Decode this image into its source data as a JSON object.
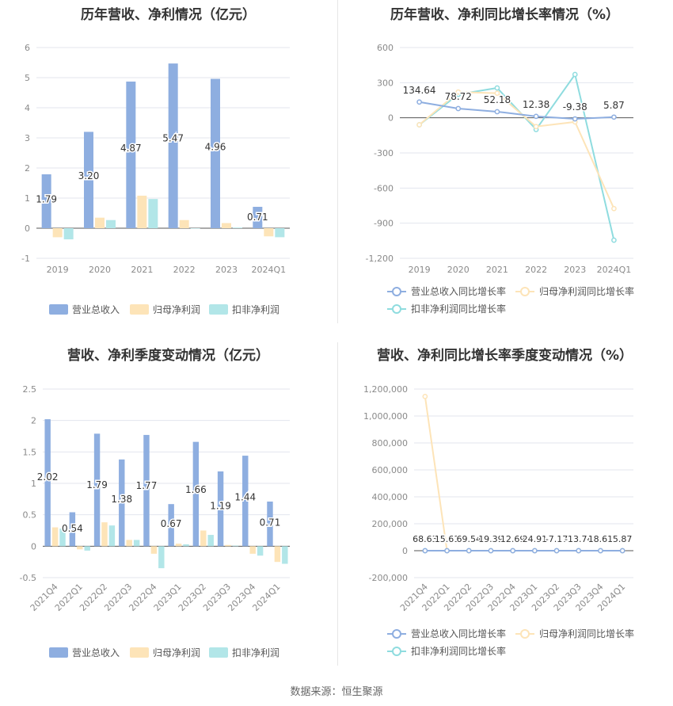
{
  "source": "数据来源：恒生聚源",
  "charts": [
    {
      "title": "历年营收、净利情况（亿元）",
      "type": "bar",
      "categories": [
        "2019",
        "2020",
        "2021",
        "2022",
        "2023",
        "2024Q1"
      ],
      "ylim": [
        -1,
        6
      ],
      "yticks": [
        -1,
        0,
        1,
        2,
        3,
        4,
        5,
        6
      ],
      "legend": [
        "营业总收入",
        "归母净利润",
        "扣非净利润"
      ],
      "colors": [
        "#8eaee0",
        "#fde4b8",
        "#b2e6e8"
      ],
      "series": [
        {
          "name": "营业总收入",
          "values": [
            1.79,
            3.2,
            4.87,
            5.47,
            4.96,
            0.71
          ],
          "labels": [
            "1.79",
            "3.20",
            "4.87",
            "5.47",
            "4.96",
            "0.71"
          ]
        },
        {
          "name": "归母净利润",
          "values": [
            -0.3,
            0.35,
            1.08,
            0.27,
            0.17,
            -0.27
          ]
        },
        {
          "name": "扣非净利润",
          "values": [
            -0.37,
            0.27,
            0.97,
            0.0,
            0.02,
            -0.3
          ]
        }
      ]
    },
    {
      "title": "历年营收、净利同比增长率情况（%）",
      "type": "line",
      "categories": [
        "2019",
        "2020",
        "2021",
        "2022",
        "2023",
        "2024Q1"
      ],
      "ylim": [
        -1200,
        600
      ],
      "yticks": [
        -1200,
        -900,
        -600,
        -300,
        0,
        300,
        600
      ],
      "ytick_labels": [
        "-1,200",
        "-900",
        "-600",
        "-300",
        "0",
        "300",
        "600"
      ],
      "legend": [
        "营业总收入同比增长率",
        "归母净利润同比增长率",
        "扣非净利润同比增长率"
      ],
      "colors": [
        "#8eaee0",
        "#fde4b8",
        "#8fdcdf"
      ],
      "series": [
        {
          "name": "营业总收入同比增长率",
          "values": [
            134.64,
            78.72,
            52.18,
            12.38,
            -9.38,
            5.87
          ],
          "labels": [
            "134.64",
            "78.72",
            "52.18",
            "12.38",
            "-9.38",
            "5.87"
          ]
        },
        {
          "name": "归母净利润同比增长率",
          "values": [
            -60,
            220,
            210,
            -75,
            -35,
            -775
          ]
        },
        {
          "name": "扣非净利润同比增长率",
          "values": [
            -60,
            200,
            255,
            -100,
            370,
            -1045
          ]
        }
      ]
    },
    {
      "title": "营收、净利季度变动情况（亿元）",
      "type": "bar",
      "categories": [
        "2021Q4",
        "2022Q1",
        "2022Q2",
        "2022Q3",
        "2022Q4",
        "2023Q1",
        "2023Q2",
        "2023Q3",
        "2023Q4",
        "2024Q1"
      ],
      "ylim": [
        -0.5,
        2.5
      ],
      "yticks": [
        -0.5,
        0,
        0.5,
        1,
        1.5,
        2,
        2.5
      ],
      "ytick_labels": [
        "-0.5",
        "0",
        "0.5",
        "1",
        "1.5",
        "2",
        "2.5"
      ],
      "legend": [
        "营业总收入",
        "归母净利润",
        "扣非净利润"
      ],
      "colors": [
        "#8eaee0",
        "#fde4b8",
        "#b2e6e8"
      ],
      "series": [
        {
          "name": "营业总收入",
          "values": [
            2.02,
            0.54,
            1.79,
            1.38,
            1.77,
            0.67,
            1.66,
            1.19,
            1.44,
            0.71
          ],
          "labels": [
            "2.02",
            "0.54",
            "1.79",
            "1.38",
            "1.77",
            "0.67",
            "1.66",
            "1.19",
            "1.44",
            "0.71"
          ]
        },
        {
          "name": "归母净利润",
          "values": [
            0.3,
            -0.05,
            0.38,
            0.1,
            -0.12,
            0.04,
            0.25,
            0.02,
            -0.12,
            -0.25
          ]
        },
        {
          "name": "扣非净利润",
          "values": [
            0.28,
            -0.07,
            0.33,
            0.1,
            -0.35,
            0.03,
            0.18,
            0.01,
            -0.15,
            -0.28
          ]
        }
      ]
    },
    {
      "title": "营收、净利同比增长率季度变动情况（%）",
      "type": "line",
      "categories": [
        "2021Q4",
        "2022Q1",
        "2022Q2",
        "2022Q3",
        "2022Q4",
        "2023Q1",
        "2023Q2",
        "2023Q3",
        "2023Q4",
        "2024Q1"
      ],
      "ylim": [
        -200000,
        1200000
      ],
      "yticks": [
        -200000,
        0,
        200000,
        400000,
        600000,
        800000,
        1000000,
        1200000
      ],
      "ytick_labels": [
        "-200,000",
        "0",
        "200,000",
        "400,000",
        "600,000",
        "800,000",
        "1,000,000",
        "1,200,000"
      ],
      "legend": [
        "营业总收入同比增长率",
        "归母净利润同比增长率",
        "扣非净利润同比增长率"
      ],
      "colors": [
        "#8eaee0",
        "#fde4b8",
        "#8fdcdf"
      ],
      "series": [
        {
          "name": "营业总收入同比增长率",
          "values": [
            68.63,
            15.61,
            69.54,
            19.39,
            12.69,
            24.91,
            -7.17,
            -13.74,
            18.61,
            5.87
          ],
          "labels": [
            "68.63",
            "15.61",
            "69.54",
            "19.39",
            "12.69",
            "24.91",
            "-7.17",
            "-13.74",
            "18.61",
            "5.87"
          ]
        },
        {
          "name": "归母净利润同比增长率",
          "values": [
            1145000,
            0,
            0,
            0,
            0,
            0,
            0,
            0,
            0,
            0
          ]
        },
        {
          "name": "扣非净利润同比增长率",
          "values": [
            0,
            0,
            0,
            0,
            0,
            0,
            0,
            0,
            0,
            0
          ]
        }
      ]
    }
  ]
}
